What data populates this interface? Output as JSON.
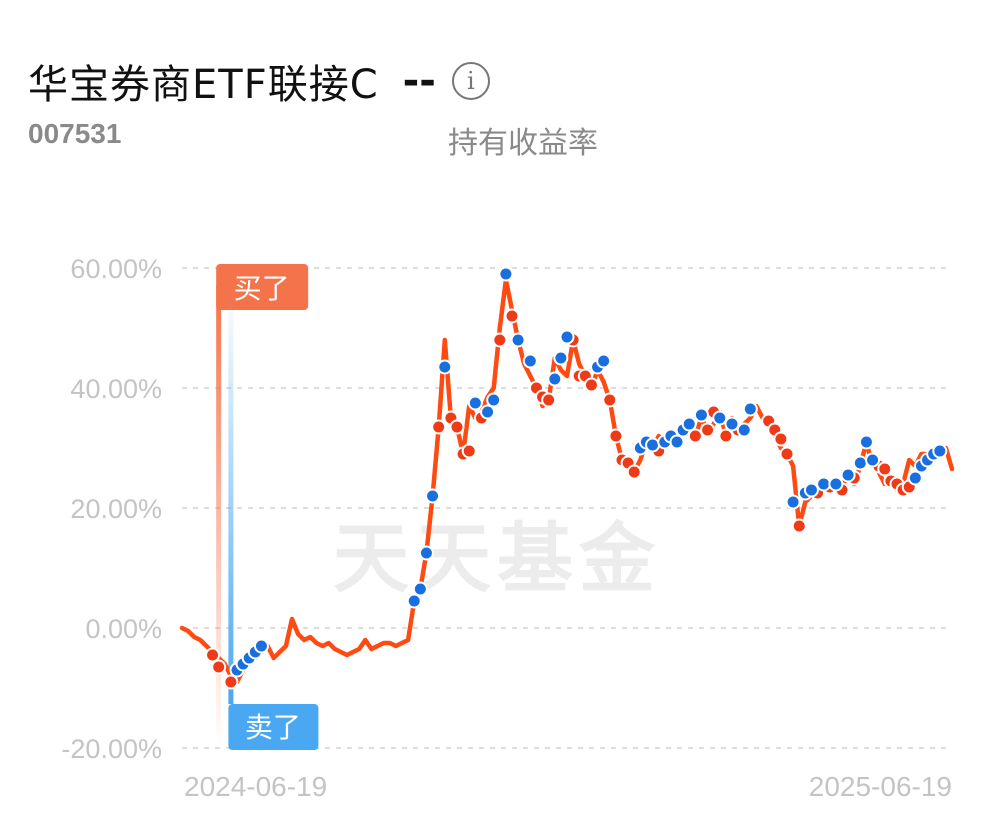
{
  "header": {
    "fund_name": "华宝券商ETF联接C",
    "fund_code": "007531",
    "metric_value": "--",
    "metric_label": "持有收益率",
    "info_icon": "info-circle-icon"
  },
  "watermark": "天天基金",
  "markers": {
    "buy_label": "买了",
    "sell_label": "卖了",
    "buy_color": "#f5734a",
    "sell_color": "#4aa8f2"
  },
  "colors": {
    "line": "#ff4a12",
    "buy_dot": "#ee3a17",
    "sell_dot": "#1a6fe0",
    "grid": "#dddddd",
    "tick": "#c4c4c4"
  },
  "chart_data": {
    "type": "line",
    "title": "",
    "xlabel": "",
    "ylabel": "",
    "ylim": [
      -20,
      60
    ],
    "yticks": [
      -20,
      0,
      20,
      40,
      60
    ],
    "ytick_labels": [
      "-20.00%",
      "0.00%",
      "20.00%",
      "40.00%",
      "60.00%"
    ],
    "xtick_labels": [
      "2024-06-19",
      "2025-06-19"
    ],
    "x_range": [
      "2024-06-19",
      "2025-06-19"
    ],
    "grid": true,
    "series": [
      {
        "values": [
          0,
          -0.5,
          -1.5,
          -2,
          -3,
          -4,
          -5,
          -6,
          -8,
          -9,
          -7,
          -6,
          -5,
          -4,
          -3,
          -5,
          -4,
          -3,
          1.5,
          -1,
          -2,
          -1.5,
          -2.5,
          -3,
          -2.5,
          -3.5,
          -4,
          -4.5,
          -4,
          -3.5,
          -2,
          -3.5,
          -3,
          -2.5,
          -2.5,
          -3,
          -2.5,
          -2,
          4.5,
          6.5,
          12.5,
          22,
          33.5,
          48,
          35,
          33.5,
          29,
          37,
          35,
          36,
          38.5,
          40,
          50,
          58,
          53,
          48,
          44,
          42,
          40,
          37,
          38,
          45,
          43,
          42,
          48,
          44,
          42,
          40,
          43,
          41,
          38,
          32,
          28,
          27,
          26,
          28,
          31,
          30,
          32,
          30,
          31,
          32,
          33,
          34,
          32,
          35,
          33,
          34,
          36,
          32,
          35,
          33,
          34,
          35,
          37,
          35,
          34,
          32,
          30,
          29,
          27,
          17,
          21,
          22,
          23,
          23,
          24,
          24,
          24,
          25,
          24,
          27,
          31,
          27,
          26,
          24,
          25,
          23,
          24,
          28,
          27,
          29,
          29,
          28,
          29.5,
          30,
          26.5
        ]
      }
    ],
    "buy_marker_index": 6,
    "sell_marker_index": 8,
    "buy_points": [
      [
        5,
        -4.5
      ],
      [
        6,
        -6.5
      ],
      [
        8,
        -9
      ],
      [
        42,
        33.5
      ],
      [
        44,
        35
      ],
      [
        45,
        33.5
      ],
      [
        46,
        29
      ],
      [
        47,
        29.5
      ],
      [
        49,
        35
      ],
      [
        52,
        48
      ],
      [
        54,
        52
      ],
      [
        58,
        40
      ],
      [
        59,
        38.5
      ],
      [
        60,
        38
      ],
      [
        64,
        48
      ],
      [
        65,
        42
      ],
      [
        66,
        42
      ],
      [
        67,
        40.5
      ],
      [
        70,
        38
      ],
      [
        71,
        32
      ],
      [
        72,
        28
      ],
      [
        73,
        27.5
      ],
      [
        74,
        26
      ],
      [
        78,
        29.5
      ],
      [
        84,
        32
      ],
      [
        86,
        33
      ],
      [
        87,
        36
      ],
      [
        89,
        32
      ],
      [
        91,
        33
      ],
      [
        96,
        34.5
      ],
      [
        97,
        33
      ],
      [
        98,
        31.5
      ],
      [
        99,
        29
      ],
      [
        101,
        17
      ],
      [
        104,
        22.5
      ],
      [
        106,
        23.5
      ],
      [
        108,
        23
      ],
      [
        110,
        25
      ],
      [
        114,
        27
      ],
      [
        115,
        26.5
      ],
      [
        116,
        24.5
      ],
      [
        117,
        24
      ],
      [
        118,
        23
      ],
      [
        119,
        23.5
      ]
    ],
    "sell_points": [
      [
        9,
        -7
      ],
      [
        10,
        -6
      ],
      [
        11,
        -5
      ],
      [
        12,
        -4
      ],
      [
        13,
        -3
      ],
      [
        38,
        4.5
      ],
      [
        39,
        6.5
      ],
      [
        40,
        12.5
      ],
      [
        41,
        22
      ],
      [
        43,
        43.5
      ],
      [
        48,
        37.5
      ],
      [
        50,
        36
      ],
      [
        51,
        38
      ],
      [
        53,
        59
      ],
      [
        55,
        48
      ],
      [
        57,
        44.5
      ],
      [
        61,
        41.5
      ],
      [
        62,
        45
      ],
      [
        63,
        48.5
      ],
      [
        68,
        43.5
      ],
      [
        69,
        44.5
      ],
      [
        75,
        30
      ],
      [
        76,
        31
      ],
      [
        77,
        30.5
      ],
      [
        79,
        31
      ],
      [
        80,
        32
      ],
      [
        81,
        31
      ],
      [
        82,
        33
      ],
      [
        83,
        34
      ],
      [
        85,
        35.5
      ],
      [
        88,
        35
      ],
      [
        90,
        34
      ],
      [
        92,
        33
      ],
      [
        93,
        36.5
      ],
      [
        100,
        21
      ],
      [
        102,
        22.5
      ],
      [
        103,
        23
      ],
      [
        105,
        24
      ],
      [
        107,
        24
      ],
      [
        109,
        25.5
      ],
      [
        111,
        27.5
      ],
      [
        112,
        31
      ],
      [
        113,
        28
      ],
      [
        120,
        25
      ],
      [
        121,
        27
      ],
      [
        122,
        28
      ],
      [
        123,
        29
      ],
      [
        124,
        29.5
      ]
    ]
  }
}
